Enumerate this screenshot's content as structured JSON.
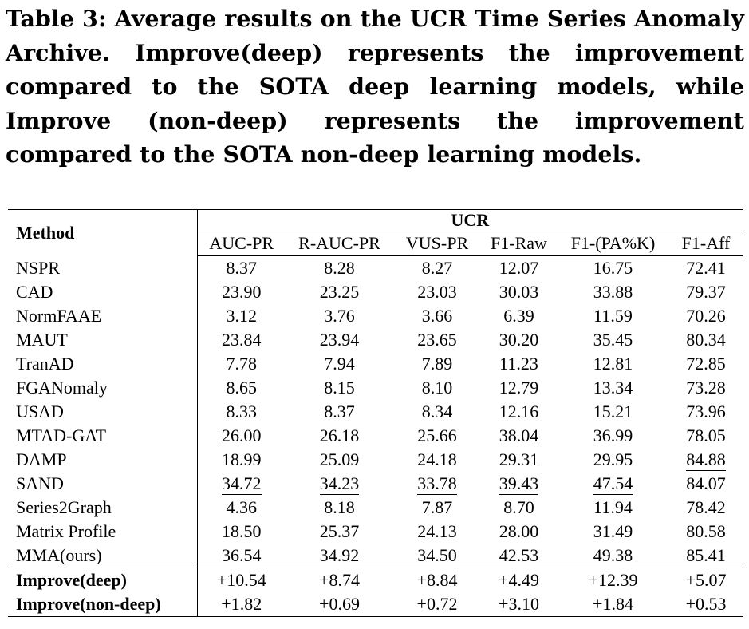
{
  "caption": "Table 3: Average results on the UCR Time Series Anomaly Archive. Improve(deep) represents the improvement compared to the SOTA deep learning models, while Improve (non-deep) represents the improvement compared to the SOTA non-deep learning models.",
  "table": {
    "method_header": "Method",
    "group_header": "UCR",
    "columns": [
      "AUC-PR",
      "R-AUC-PR",
      "VUS-PR",
      "F1-Raw",
      "F1-(PA%K)",
      "F1-Aff"
    ],
    "rows": [
      {
        "method": "NSPR",
        "values": [
          "8.37",
          "8.28",
          "8.27",
          "12.07",
          "16.75",
          "72.41"
        ]
      },
      {
        "method": "CAD",
        "values": [
          "23.90",
          "23.25",
          "23.03",
          "30.03",
          "33.88",
          "79.37"
        ]
      },
      {
        "method": "NormFAAE",
        "values": [
          "3.12",
          "3.76",
          "3.66",
          "6.39",
          "11.59",
          "70.26"
        ]
      },
      {
        "method": "MAUT",
        "values": [
          "23.84",
          "23.94",
          "23.65",
          "30.20",
          "35.45",
          "80.34"
        ]
      },
      {
        "method": "TranAD",
        "values": [
          "7.78",
          "7.94",
          "7.89",
          "11.23",
          "12.81",
          "72.85"
        ]
      },
      {
        "method": "FGANomaly",
        "values": [
          "8.65",
          "8.15",
          "8.10",
          "12.79",
          "13.34",
          "73.28"
        ]
      },
      {
        "method": "USAD",
        "values": [
          "8.33",
          "8.37",
          "8.34",
          "12.16",
          "15.21",
          "73.96"
        ]
      },
      {
        "method": "MTAD-GAT",
        "values": [
          "26.00",
          "26.18",
          "25.66",
          "38.04",
          "36.99",
          "78.05"
        ]
      },
      {
        "method": "DAMP",
        "values": [
          "18.99",
          "25.09",
          "24.18",
          "29.31",
          "29.95",
          "84.88"
        ]
      },
      {
        "method": "SAND",
        "values": [
          "34.72",
          "34.23",
          "33.78",
          "39.43",
          "47.54",
          "84.07"
        ]
      },
      {
        "method": "Series2Graph",
        "values": [
          "4.36",
          "8.18",
          "7.87",
          "8.70",
          "11.94",
          "78.42"
        ]
      },
      {
        "method": "Matrix Profile",
        "values": [
          "18.50",
          "25.37",
          "24.13",
          "28.00",
          "31.49",
          "80.58"
        ]
      },
      {
        "method": "MMA(ours)",
        "values": [
          "36.54",
          "34.92",
          "34.50",
          "42.53",
          "49.38",
          "85.41"
        ]
      }
    ],
    "improve_rows": [
      {
        "method": "Improve(deep)",
        "values": [
          "+10.54",
          "+8.74",
          "+8.84",
          "+4.49",
          "+12.39",
          "+5.07"
        ]
      },
      {
        "method": "Improve(non-deep)",
        "values": [
          "+1.82",
          "+0.69",
          "+0.72",
          "+3.10",
          "+1.84",
          "+0.53"
        ]
      }
    ]
  }
}
